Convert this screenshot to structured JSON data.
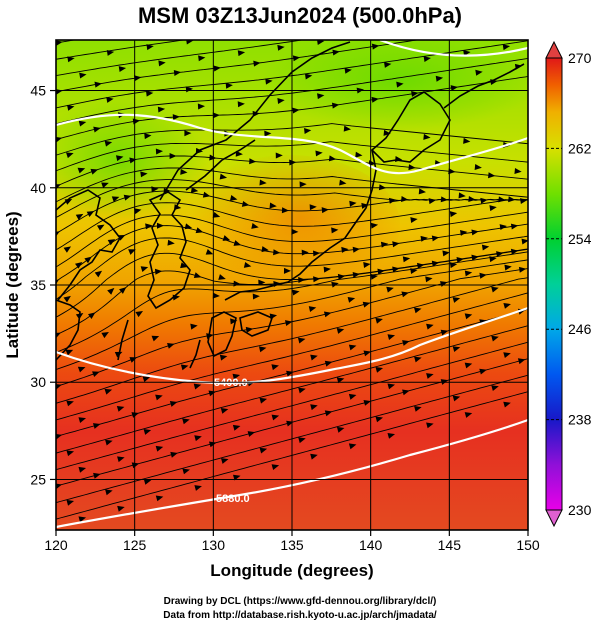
{
  "title": "MSM 03Z13Jun2024 (500.0hPa)",
  "xlabel": "Longitude (degrees)",
  "ylabel": "Latitude  (degrees)",
  "credit_line1": "Drawing by DCL (https://www.gfd-dennou.org/library/dcl/)",
  "credit_line2": "Data from http://database.rish.kyoto-u.ac.jp/arch/jmadata/",
  "chart_data": {
    "type": "heatmap",
    "title": "MSM 03Z13Jun2024 (500.0hPa)",
    "xlabel": "Longitude (degrees)",
    "ylabel": "Latitude  (degrees)",
    "xlim": [
      120,
      150
    ],
    "ylim": [
      22.4,
      47.6
    ],
    "xticks": [
      120,
      125,
      130,
      135,
      140,
      145,
      150
    ],
    "yticks": [
      25,
      30,
      35,
      40,
      45
    ],
    "colorbar": {
      "min": 230,
      "max": 270,
      "ticks": [
        230,
        238,
        246,
        254,
        262,
        270
      ],
      "colors": [
        "#e800e8",
        "#8000e0",
        "#1010d0",
        "#0060ff",
        "#00b0e0",
        "#00d090",
        "#00d030",
        "#60e000",
        "#c0e000",
        "#f0d000",
        "#f0a000",
        "#f06000",
        "#e02010"
      ]
    },
    "contour_labels": [
      {
        "text": "5400.0",
        "lon": 131.2,
        "lat": 30.8
      },
      {
        "text": "5880.0",
        "lon": 131.3,
        "lat": 23.7
      }
    ]
  }
}
